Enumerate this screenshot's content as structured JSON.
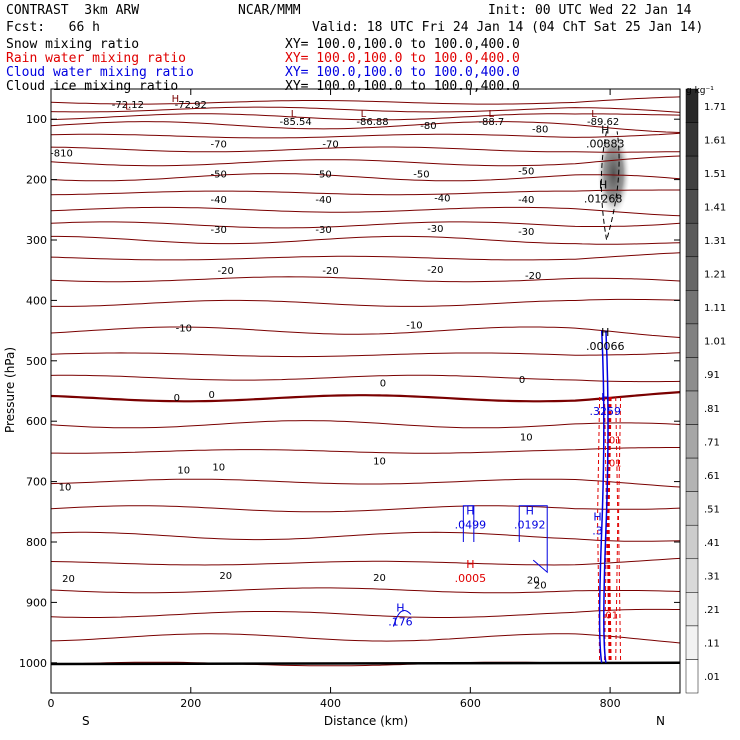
{
  "header": {
    "left_line1": "CONTRAST  3km ARW",
    "center_line1": "NCAR/MMM",
    "right_line1": "Init: 00 UTC Wed 22 Jan 14",
    "left_line2": "Fcst:   66 h",
    "right_line2": "Valid: 18 UTC Fri 24 Jan 14 (04 ChT Sat 25 Jan 14)"
  },
  "fields": [
    {
      "name": "Snow mixing ratio",
      "xy": "XY= 100.0,100.0 to 100.0,400.0",
      "color": "#000000"
    },
    {
      "name": "Rain water mixing ratio",
      "xy": "XY= 100.0,100.0 to 100.0,400.0",
      "color": "#e00000"
    },
    {
      "name": "Cloud water mixing ratio",
      "xy": "XY= 100.0,100.0 to 100.0,400.0",
      "color": "#0000e0"
    },
    {
      "name": "Cloud ice mixing ratio",
      "xy": "XY= 100.0,100.0 to 100.0,400.0",
      "color": "#000000"
    }
  ],
  "chart_data": {
    "type": "contour-cross-section",
    "xlabel": "Distance (km)",
    "ylabel": "Pressure (hPa)",
    "xlim": [
      0,
      900
    ],
    "ylim": [
      1050,
      50
    ],
    "xticks": [
      0,
      200,
      400,
      600,
      800
    ],
    "yticks": [
      100,
      200,
      300,
      400,
      500,
      600,
      700,
      800,
      900,
      1000
    ],
    "x_end_labels": {
      "left": "S",
      "right": "N"
    },
    "colorbar": {
      "unit": "g kg⁻¹",
      "levels": [
        "1.71",
        "1.61",
        "1.51",
        "1.41",
        "1.31",
        "1.21",
        "1.11",
        "1.01",
        ".91",
        ".81",
        ".71",
        ".61",
        ".51",
        ".41",
        ".31",
        ".21",
        ".11",
        ".01"
      ]
    },
    "temperature_contour_labels": [
      {
        "text": "-70",
        "x": 240,
        "p": 140
      },
      {
        "text": "-70",
        "x": 400,
        "p": 140
      },
      {
        "text": "-80",
        "x": 540,
        "p": 110
      },
      {
        "text": "-80",
        "x": 700,
        "p": 115
      },
      {
        "text": "-50",
        "x": 240,
        "p": 190
      },
      {
        "text": "-50",
        "x": 390,
        "p": 190
      },
      {
        "text": "-50",
        "x": 530,
        "p": 190
      },
      {
        "text": "-50",
        "x": 680,
        "p": 185
      },
      {
        "text": "-40",
        "x": 240,
        "p": 232
      },
      {
        "text": "-40",
        "x": 390,
        "p": 232
      },
      {
        "text": "-40",
        "x": 560,
        "p": 230
      },
      {
        "text": "-40",
        "x": 680,
        "p": 232
      },
      {
        "text": "-30",
        "x": 240,
        "p": 282
      },
      {
        "text": "-30",
        "x": 390,
        "p": 282
      },
      {
        "text": "-30",
        "x": 550,
        "p": 280
      },
      {
        "text": "-30",
        "x": 680,
        "p": 285
      },
      {
        "text": "-20",
        "x": 250,
        "p": 350
      },
      {
        "text": "-20",
        "x": 400,
        "p": 350
      },
      {
        "text": "-20",
        "x": 550,
        "p": 348
      },
      {
        "text": "-20",
        "x": 690,
        "p": 358
      },
      {
        "text": "-10",
        "x": 190,
        "p": 445
      },
      {
        "text": "-10",
        "x": 520,
        "p": 440
      },
      {
        "text": "0",
        "x": 180,
        "p": 560
      },
      {
        "text": "0",
        "x": 230,
        "p": 555
      },
      {
        "text": "0",
        "x": 475,
        "p": 536
      },
      {
        "text": "0",
        "x": 674,
        "p": 530
      },
      {
        "text": "10",
        "x": 190,
        "p": 680
      },
      {
        "text": "10",
        "x": 240,
        "p": 675
      },
      {
        "text": "10",
        "x": 470,
        "p": 665
      },
      {
        "text": "10",
        "x": 680,
        "p": 625
      },
      {
        "text": "10",
        "x": 20,
        "p": 708
      },
      {
        "text": "20",
        "x": 25,
        "p": 860
      },
      {
        "text": "20",
        "x": 250,
        "p": 855
      },
      {
        "text": "20",
        "x": 470,
        "p": 858
      },
      {
        "text": "20",
        "x": 690,
        "p": 862
      }
    ],
    "pressure_labels_top": [
      {
        "text": "-72.12",
        "x": 110,
        "p": 75
      },
      {
        "text": "-72.92",
        "x": 200,
        "p": 75
      },
      {
        "text": "-85.54",
        "x": 350,
        "p": 103
      },
      {
        "text": "-86.88",
        "x": 460,
        "p": 103
      },
      {
        "text": "-88.7",
        "x": 630,
        "p": 103
      },
      {
        "text": "-89.62",
        "x": 790,
        "p": 103
      },
      {
        "text": "-810",
        "x": 15,
        "p": 155
      }
    ],
    "extrema_labels": [
      {
        "kind": "H",
        "value": ".00883",
        "x": 793,
        "p": 137,
        "color": "#000000"
      },
      {
        "kind": "H",
        "value": ".01268",
        "x": 790,
        "p": 228,
        "color": "#000000"
      },
      {
        "kind": "H",
        "value": ".00066",
        "x": 793,
        "p": 472,
        "color": "#000000"
      },
      {
        "kind": "H",
        "value": ".3259",
        "x": 793,
        "p": 580,
        "color": "#0000e0"
      },
      {
        "kind": "H",
        "value": ".0499",
        "x": 600,
        "p": 768,
        "color": "#0000e0"
      },
      {
        "kind": "H",
        "value": ".0192",
        "x": 685,
        "p": 768,
        "color": "#0000e0"
      },
      {
        "kind": "H",
        "value": ".3",
        "x": 782,
        "p": 778,
        "color": "#0000e0"
      },
      {
        "kind": "H",
        "value": ".0005",
        "x": 600,
        "p": 856,
        "color": "#e00000"
      },
      {
        "kind": "H",
        "value": ".176",
        "x": 500,
        "p": 928,
        "color": "#0000e0"
      }
    ],
    "low_labels": [
      {
        "text": "L",
        "x": 110,
        "p": 77
      },
      {
        "text": "L",
        "x": 347,
        "p": 90
      },
      {
        "text": "L",
        "x": 447,
        "p": 90
      },
      {
        "text": "L",
        "x": 630,
        "p": 90
      },
      {
        "text": "L",
        "x": 777,
        "p": 90
      }
    ],
    "high_labels": [
      {
        "text": "H",
        "x": 178,
        "p": 65
      }
    ],
    "rain_labels": [
      {
        "text": ".01",
        "x": 805,
        "p": 630
      },
      {
        "text": ".01",
        "x": 805,
        "p": 668
      },
      {
        "text": ".01",
        "x": 800,
        "p": 920
      }
    ],
    "snow_labels": [
      {
        "text": "20",
        "x": 700,
        "p": 870
      }
    ]
  }
}
